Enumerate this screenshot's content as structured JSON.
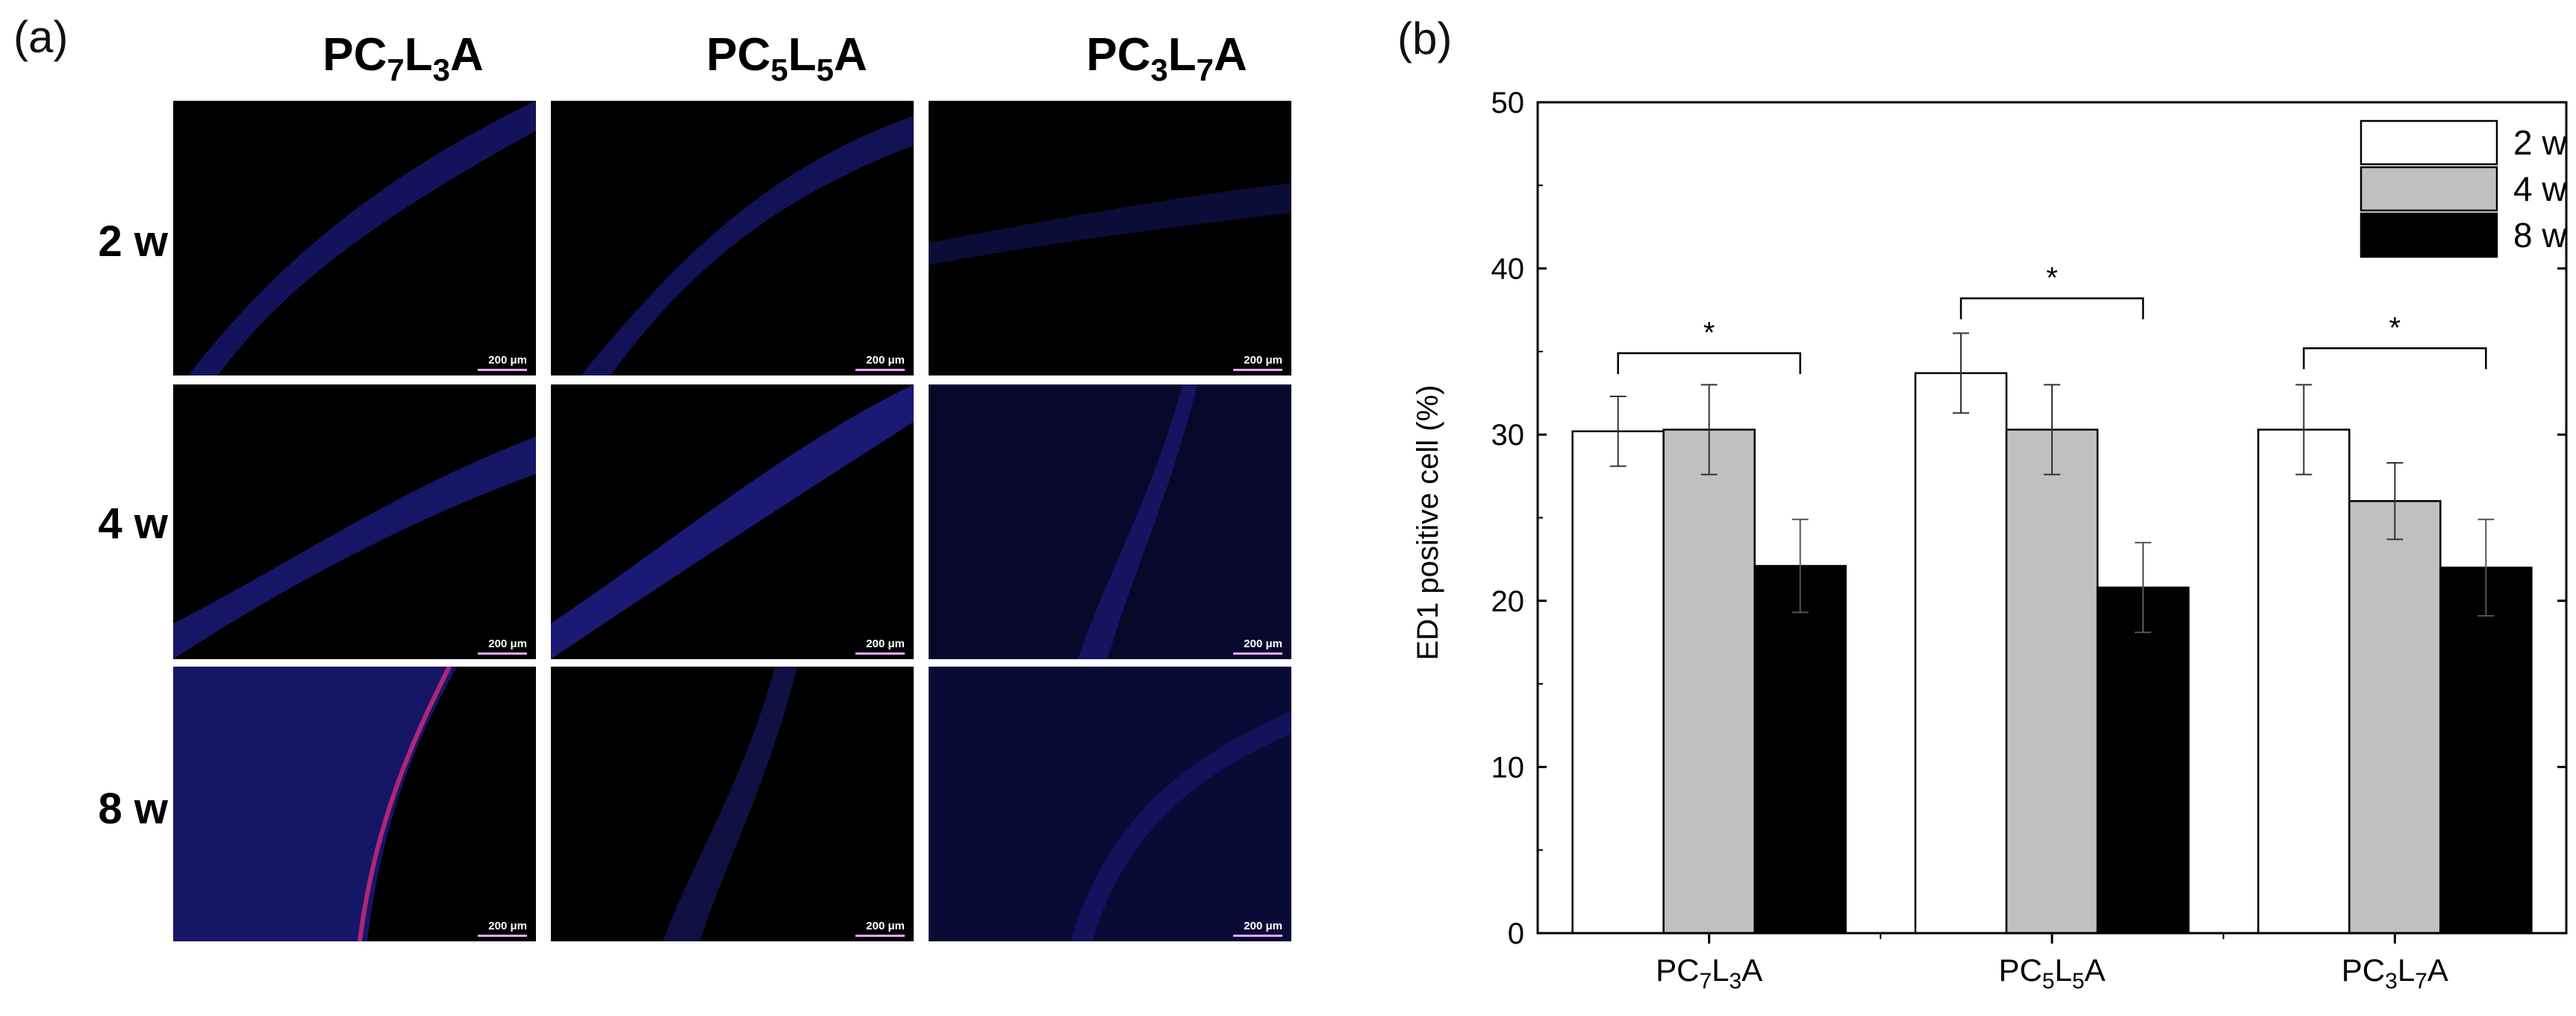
{
  "panel_a": {
    "label": "(a)",
    "columns": [
      {
        "base": "PC",
        "s1": "7",
        "mid": "L",
        "s2": "3",
        "end": "A"
      },
      {
        "base": "PC",
        "s1": "5",
        "mid": "L",
        "s2": "5",
        "end": "A"
      },
      {
        "base": "PC",
        "s1": "3",
        "mid": "L",
        "s2": "7",
        "end": "A"
      }
    ],
    "rows": [
      "2 w",
      "4 w",
      "8 w"
    ],
    "scale_bar": "200 μm"
  },
  "chart_data": {
    "label": "(b)",
    "type": "bar",
    "title": "",
    "xlabel": "",
    "ylabel": "ED1 positive cell (%)",
    "ylim": [
      0,
      50
    ],
    "yticks": [
      "0",
      "10",
      "20",
      "30",
      "40",
      "50"
    ],
    "categories": [
      {
        "base": "PC",
        "s1": "7",
        "mid": "L",
        "s2": "3",
        "end": "A"
      },
      {
        "base": "PC",
        "s1": "5",
        "mid": "L",
        "s2": "5",
        "end": "A"
      },
      {
        "base": "PC",
        "s1": "3",
        "mid": "L",
        "s2": "7",
        "end": "A"
      }
    ],
    "series": [
      {
        "name": "2 w",
        "color": "#ffffff",
        "values": [
          30.2,
          33.7,
          30.3
        ],
        "errors": [
          2.1,
          2.4,
          2.7
        ]
      },
      {
        "name": "4 w",
        "color": "#c0c0c0",
        "values": [
          30.3,
          30.3,
          26.0
        ],
        "errors": [
          2.7,
          2.7,
          2.3
        ]
      },
      {
        "name": "8 w",
        "color": "#000000",
        "values": [
          22.1,
          20.8,
          22.0
        ],
        "errors": [
          2.8,
          2.7,
          2.9
        ]
      }
    ],
    "significance": [
      {
        "group": 0,
        "from": "2 w",
        "to": "8 w",
        "label": "*",
        "y": 34.9
      },
      {
        "group": 1,
        "from": "2 w",
        "to": "8 w",
        "label": "*",
        "y": 38.2
      },
      {
        "group": 2,
        "from": "2 w",
        "to": "8 w",
        "label": "*",
        "y": 35.2
      }
    ],
    "legend": "top-right"
  }
}
